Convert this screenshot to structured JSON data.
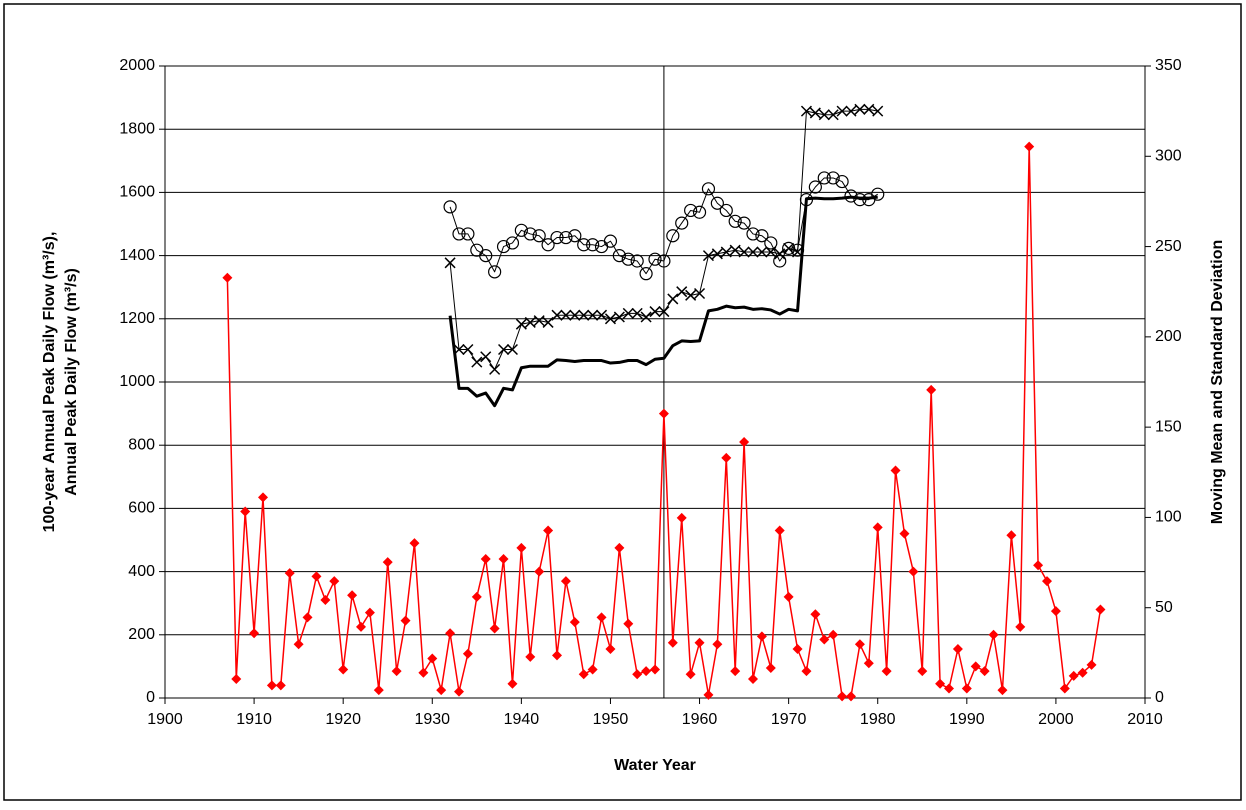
{
  "chart_data": {
    "type": "line",
    "x_label": "Water Year",
    "y_label": [
      "100-year Annual Peak Daily Flow (m³/s),",
      "Annual Peak Daily Flow (m³/s)"
    ],
    "y2_label": "Moving Mean and Standard Deviation",
    "xlim": [
      1900,
      2010
    ],
    "xticks": [
      1900,
      1910,
      1920,
      1930,
      1940,
      1950,
      1960,
      1970,
      1980,
      1990,
      2000,
      2010
    ],
    "ylim": [
      0,
      2000
    ],
    "yticks": [
      0,
      200,
      400,
      600,
      800,
      1000,
      1200,
      1400,
      1600,
      1800,
      2000
    ],
    "y2lim": [
      0,
      350
    ],
    "y2ticks": [
      0,
      50,
      100,
      150,
      200,
      250,
      300,
      350
    ],
    "grid": true,
    "vline": 1956,
    "series": [
      {
        "color": "#ff0000",
        "marker": "diamond",
        "line_width": 1.5,
        "x": [
          1907,
          1908,
          1909,
          1910,
          1911,
          1912,
          1913,
          1914,
          1915,
          1916,
          1917,
          1918,
          1919,
          1920,
          1921,
          1922,
          1923,
          1924,
          1925,
          1926,
          1927,
          1928,
          1929,
          1930,
          1931,
          1932,
          1933,
          1934,
          1935,
          1936,
          1937,
          1938,
          1939,
          1940,
          1941,
          1942,
          1943,
          1944,
          1945,
          1946,
          1947,
          1948,
          1949,
          1950,
          1951,
          1952,
          1953,
          1954,
          1955,
          1956,
          1957,
          1958,
          1959,
          1960,
          1961,
          1962,
          1963,
          1964,
          1965,
          1966,
          1967,
          1968,
          1969,
          1970,
          1971,
          1972,
          1973,
          1974,
          1975,
          1976,
          1977,
          1978,
          1979,
          1980,
          1981,
          1982,
          1983,
          1984,
          1985,
          1986,
          1987,
          1988,
          1989,
          1990,
          1991,
          1992,
          1993,
          1994,
          1995,
          1996,
          1997,
          1998,
          1999,
          2000,
          2001,
          2002,
          2003,
          2004,
          2005
        ],
        "values": [
          1330,
          60,
          590,
          205,
          635,
          40,
          40,
          395,
          170,
          255,
          385,
          310,
          370,
          90,
          325,
          225,
          270,
          25,
          430,
          85,
          245,
          490,
          80,
          125,
          25,
          205,
          20,
          140,
          320,
          440,
          220,
          440,
          45,
          475,
          130,
          400,
          530,
          135,
          370,
          240,
          75,
          90,
          255,
          155,
          475,
          235,
          75,
          85,
          90,
          900,
          175,
          570,
          75,
          175,
          10,
          170,
          760,
          85,
          810,
          60,
          195,
          95,
          530,
          320,
          155,
          85,
          265,
          185,
          200,
          5,
          5,
          170,
          110,
          540,
          85,
          720,
          520,
          400,
          85,
          975,
          45,
          30,
          155,
          30,
          100,
          85,
          200,
          25,
          515,
          225,
          1745,
          420,
          370,
          275,
          30,
          70,
          80,
          105,
          280
        ]
      },
      {
        "color": "#000000",
        "marker": "none",
        "line_width": 3,
        "x": [
          1932,
          1933,
          1934,
          1935,
          1936,
          1937,
          1938,
          1939,
          1940,
          1941,
          1942,
          1943,
          1944,
          1945,
          1946,
          1947,
          1948,
          1949,
          1950,
          1951,
          1952,
          1953,
          1954,
          1955,
          1956,
          1957,
          1958,
          1959,
          1960,
          1961,
          1962,
          1963,
          1964,
          1965,
          1966,
          1967,
          1968,
          1969,
          1970,
          1971,
          1972,
          1973,
          1974,
          1975,
          1976,
          1977,
          1978,
          1979,
          1980
        ],
        "values": [
          1210,
          980,
          980,
          955,
          965,
          925,
          980,
          975,
          1045,
          1050,
          1050,
          1050,
          1070,
          1068,
          1065,
          1068,
          1068,
          1068,
          1060,
          1062,
          1068,
          1068,
          1055,
          1072,
          1075,
          1115,
          1130,
          1128,
          1130,
          1225,
          1230,
          1240,
          1235,
          1237,
          1230,
          1232,
          1228,
          1215,
          1230,
          1225,
          1580,
          1582,
          1580,
          1580,
          1582,
          1585,
          1582,
          1582,
          1585
        ]
      },
      {
        "color": "#000000",
        "marker": "circle",
        "line_width": 1,
        "axis": "y2",
        "x": [
          1932,
          1933,
          1934,
          1935,
          1936,
          1937,
          1938,
          1939,
          1940,
          1941,
          1942,
          1943,
          1944,
          1945,
          1946,
          1947,
          1948,
          1949,
          1950,
          1951,
          1952,
          1953,
          1954,
          1955,
          1956,
          1957,
          1958,
          1959,
          1960,
          1961,
          1962,
          1963,
          1964,
          1965,
          1966,
          1967,
          1968,
          1969,
          1970,
          1971,
          1972,
          1973,
          1974,
          1975,
          1976,
          1977,
          1978,
          1979,
          1980
        ],
        "values": [
          272,
          257,
          257,
          248,
          245,
          236,
          250,
          252,
          259,
          257,
          256,
          251,
          255,
          255,
          256,
          251,
          251,
          250,
          253,
          245,
          243,
          242,
          235,
          243,
          242,
          256,
          263,
          270,
          269,
          282,
          274,
          270,
          264,
          263,
          257,
          256,
          252,
          242,
          249,
          248,
          276,
          283,
          288,
          288,
          286,
          278,
          276,
          276,
          279
        ]
      },
      {
        "color": "#000000",
        "marker": "cross",
        "line_width": 1,
        "axis": "y2",
        "x": [
          1932,
          1933,
          1934,
          1935,
          1936,
          1937,
          1938,
          1939,
          1940,
          1941,
          1942,
          1943,
          1944,
          1945,
          1946,
          1947,
          1948,
          1949,
          1950,
          1951,
          1952,
          1953,
          1954,
          1955,
          1956,
          1957,
          1958,
          1959,
          1960,
          1961,
          1962,
          1963,
          1964,
          1965,
          1966,
          1967,
          1968,
          1969,
          1970,
          1971,
          1972,
          1973,
          1974,
          1975,
          1976,
          1977,
          1978,
          1979,
          1980
        ],
        "values": [
          241,
          193,
          193,
          186,
          189,
          182,
          193,
          193,
          207,
          208,
          209,
          208,
          212,
          212,
          212,
          212,
          212,
          212,
          210,
          211,
          213,
          213,
          211,
          214,
          214,
          221,
          225,
          223,
          224,
          245,
          246,
          247,
          248,
          247,
          247,
          247,
          247,
          246,
          249,
          247,
          325,
          324,
          323,
          323,
          325,
          325,
          326,
          326,
          325
        ]
      }
    ]
  }
}
